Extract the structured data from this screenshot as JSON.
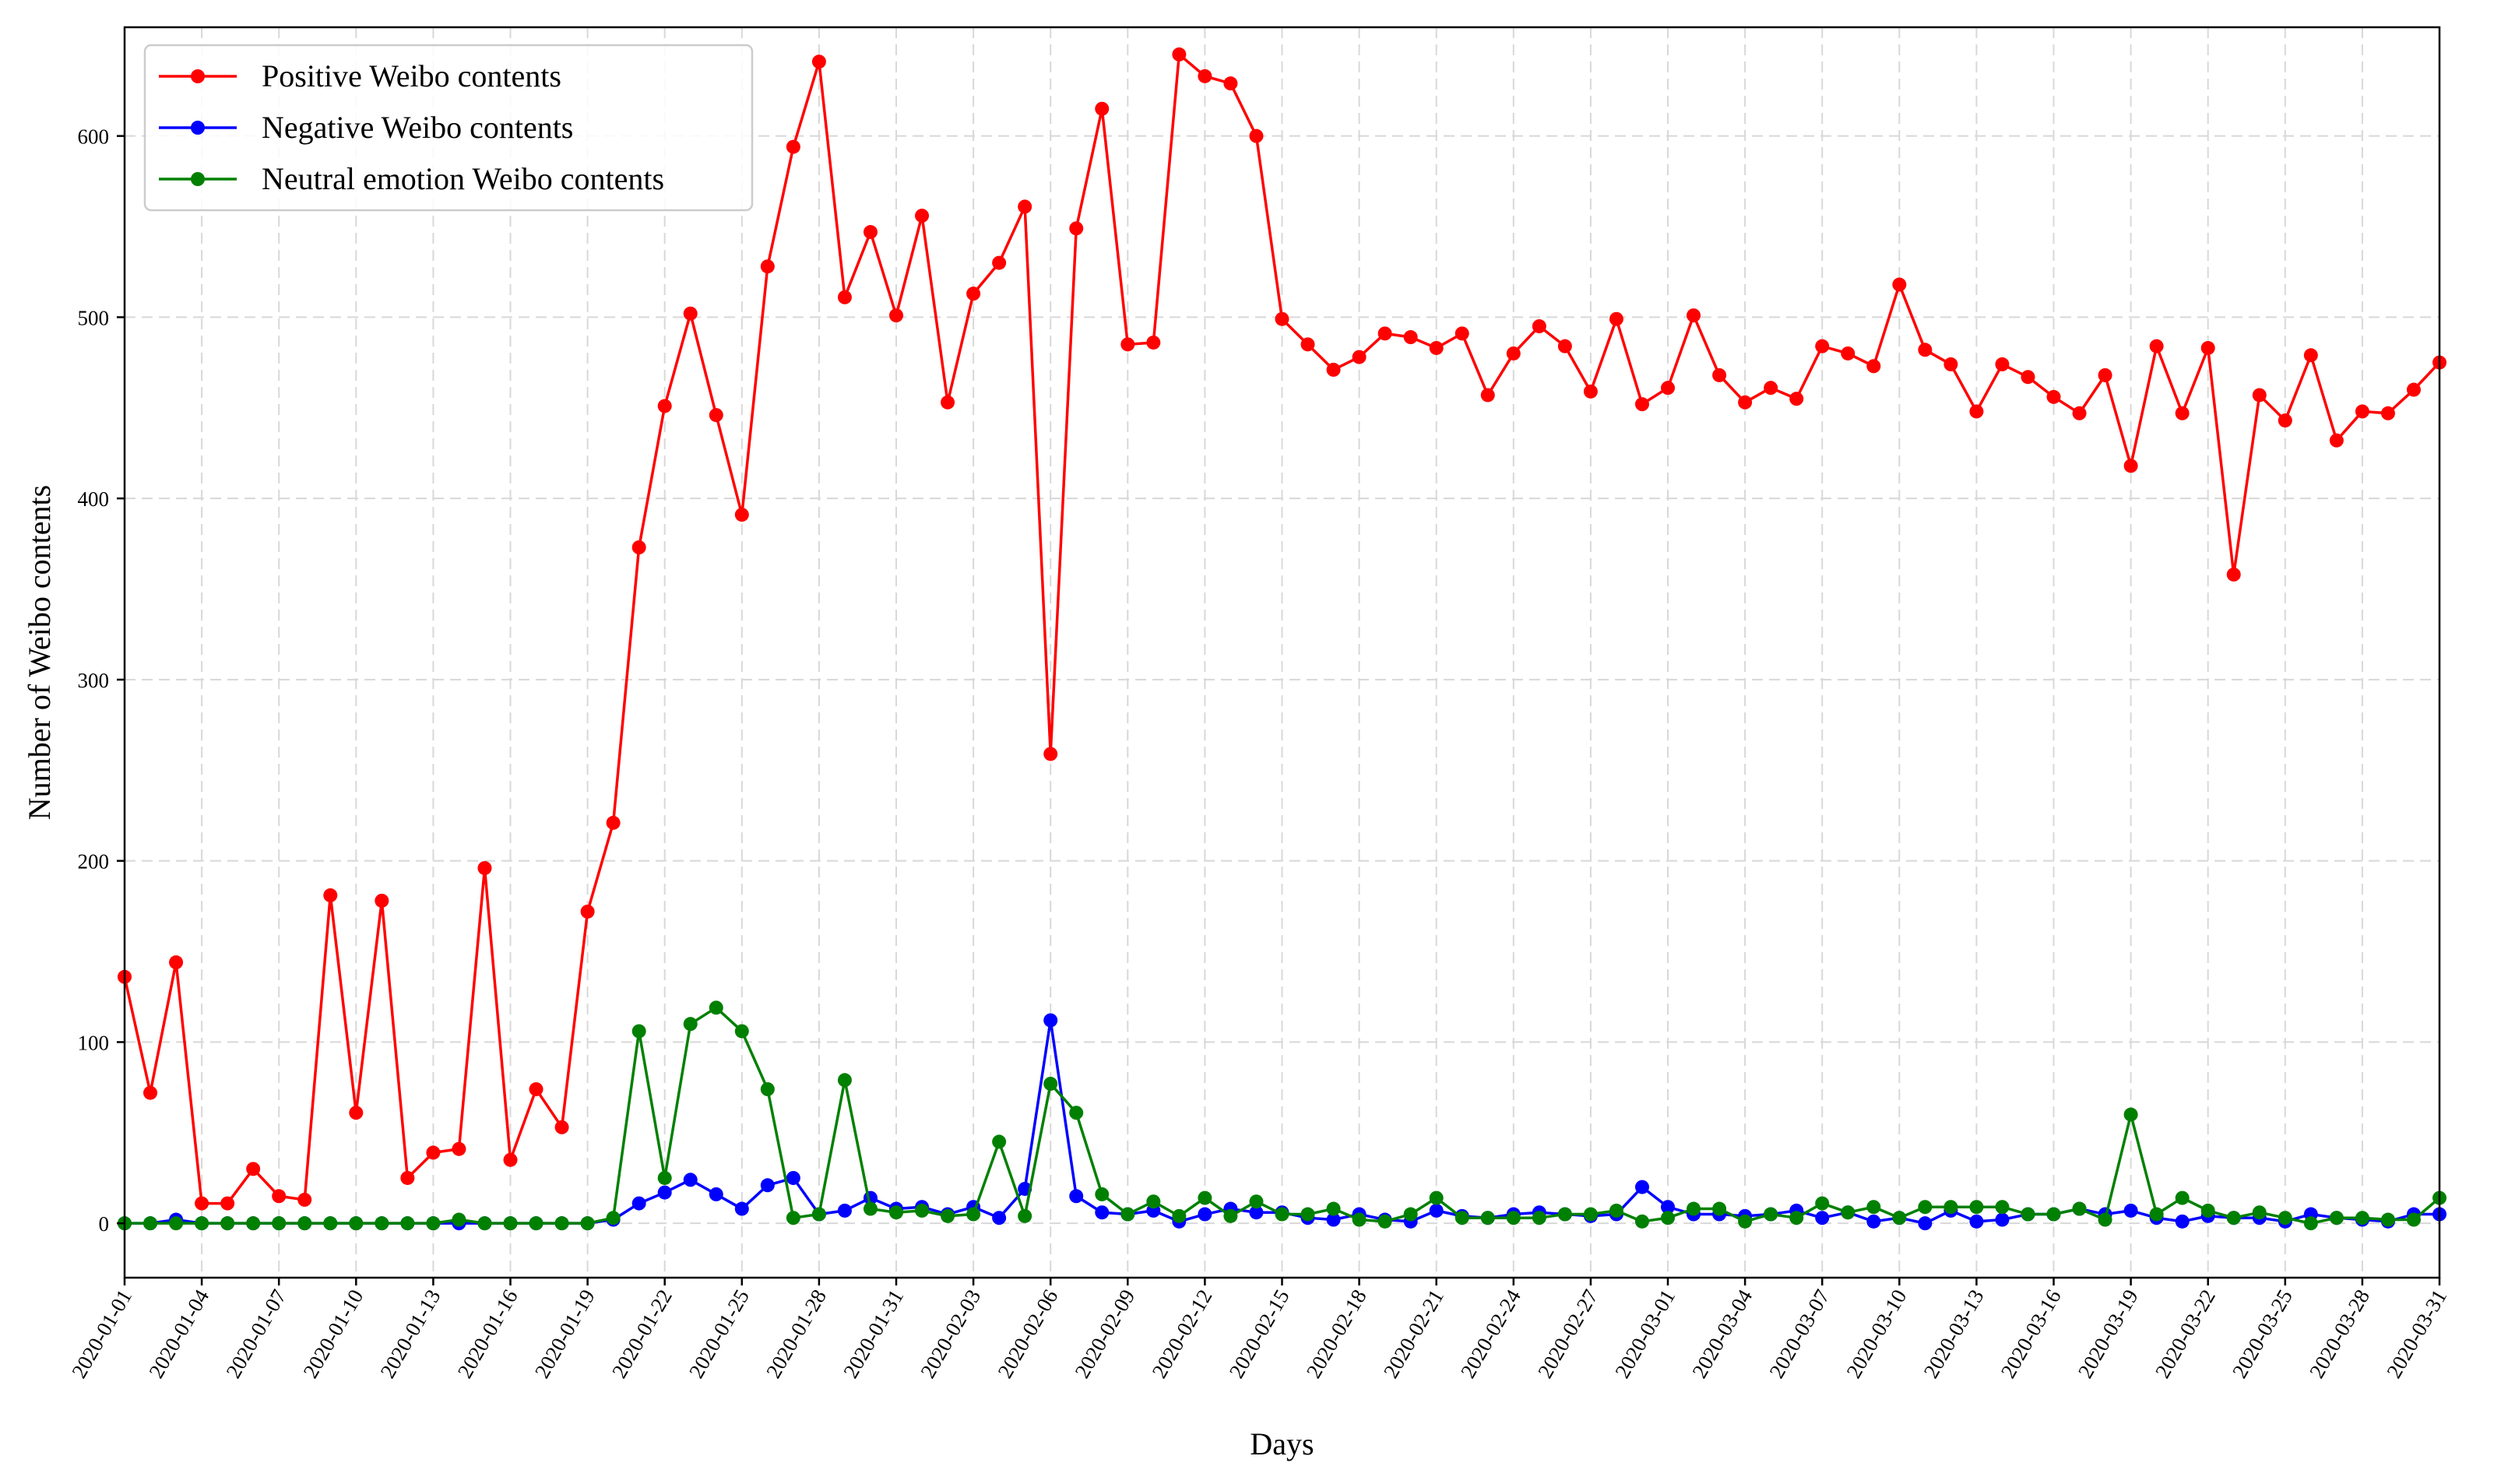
{
  "chart_data": {
    "type": "line",
    "xlabel": "Days",
    "ylabel": "Number of Weibo contents",
    "ylim": [
      -30,
      660
    ],
    "yticks": [
      0,
      100,
      200,
      300,
      400,
      500,
      600
    ],
    "xtick_labels": [
      "2020-01-01",
      "2020-01-04",
      "2020-01-07",
      "2020-01-10",
      "2020-01-13",
      "2020-01-16",
      "2020-01-19",
      "2020-01-22",
      "2020-01-25",
      "2020-01-28",
      "2020-01-31",
      "2020-02-03",
      "2020-02-06",
      "2020-02-09",
      "2020-02-12",
      "2020-02-15",
      "2020-02-18",
      "2020-02-21",
      "2020-02-24",
      "2020-02-27",
      "2020-03-01",
      "2020-03-04",
      "2020-03-07",
      "2020-03-10",
      "2020-03-13",
      "2020-03-16",
      "2020-03-19",
      "2020-03-22",
      "2020-03-25",
      "2020-03-28",
      "2020-03-31"
    ],
    "x_start": "2020-01-01",
    "x_end": "2020-03-31",
    "grid": true,
    "legend_position": "top-left",
    "series": [
      {
        "name": "Positive Weibo contents",
        "color": "#ff0000",
        "values": [
          136,
          72,
          144,
          11,
          11,
          30,
          15,
          13,
          181,
          61,
          178,
          25,
          39,
          41,
          196,
          35,
          74,
          53,
          172,
          221,
          373,
          451,
          502,
          446,
          391,
          528,
          594,
          641,
          511,
          547,
          501,
          556,
          453,
          513,
          530,
          561,
          259,
          549,
          615,
          485,
          486,
          645,
          633,
          629,
          600,
          499,
          485,
          471,
          478,
          491,
          489,
          483,
          491,
          457,
          480,
          495,
          484,
          459,
          499,
          452,
          461,
          501,
          468,
          453,
          461,
          455,
          484,
          480,
          473,
          518,
          482,
          474,
          448,
          474,
          467,
          456,
          447,
          468,
          418,
          484,
          447,
          483,
          358,
          457,
          443,
          479,
          432,
          448,
          447,
          460,
          475
        ]
      },
      {
        "name": "Negative Weibo contents",
        "color": "#0000ff",
        "values": [
          0,
          0,
          2,
          0,
          0,
          0,
          0,
          0,
          0,
          0,
          0,
          0,
          0,
          0,
          0,
          0,
          0,
          0,
          0,
          2,
          11,
          17,
          24,
          16,
          8,
          21,
          25,
          5,
          7,
          14,
          8,
          9,
          5,
          9,
          3,
          19,
          112,
          15,
          6,
          5,
          7,
          1,
          5,
          8,
          6,
          6,
          3,
          2,
          5,
          2,
          1,
          7,
          4,
          3,
          5,
          6,
          5,
          4,
          5,
          20,
          9,
          5,
          5,
          4,
          5,
          7,
          3,
          6,
          1,
          3,
          0,
          7,
          1,
          2,
          5,
          5,
          8,
          5,
          7,
          3,
          1,
          4,
          3,
          3,
          1,
          5,
          3,
          2,
          1,
          5,
          5
        ]
      },
      {
        "name": "Neutral emotion Weibo contents",
        "color": "#008000",
        "values": [
          0,
          0,
          0,
          0,
          0,
          0,
          0,
          0,
          0,
          0,
          0,
          0,
          0,
          2,
          0,
          0,
          0,
          0,
          0,
          3,
          106,
          25,
          110,
          119,
          106,
          74,
          3,
          5,
          79,
          8,
          6,
          7,
          4,
          5,
          45,
          4,
          77,
          61,
          16,
          5,
          12,
          4,
          14,
          4,
          12,
          5,
          5,
          8,
          2,
          1,
          5,
          14,
          3,
          3,
          3,
          3,
          5,
          5,
          7,
          1,
          3,
          8,
          8,
          1,
          5,
          3,
          11,
          6,
          9,
          3,
          9,
          9,
          9,
          9,
          5,
          5,
          8,
          2,
          60,
          5,
          14,
          7,
          3,
          6,
          3,
          0,
          3,
          3,
          2,
          2,
          14
        ]
      }
    ]
  }
}
